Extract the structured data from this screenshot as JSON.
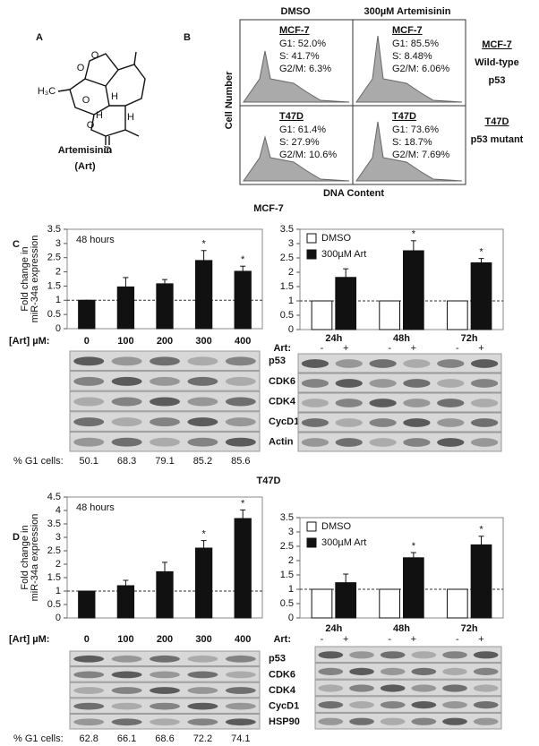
{
  "panel_labels": [
    "A",
    "B",
    "C",
    "D"
  ],
  "structure": {
    "name": "Artemisinin",
    "abbrev": "(Art)",
    "atoms": [
      "H₃C",
      "O",
      "O",
      "O",
      "H",
      "H",
      "O",
      "O",
      "H"
    ]
  },
  "flow": {
    "columns": [
      "DMSO",
      "300µM Artemisinin"
    ],
    "y_label": "Cell Number",
    "x_label": "DNA Content",
    "panels": [
      {
        "line": "MCF-7",
        "stats": [
          "G1: 52.0%",
          "S: 41.7%",
          "G2/M: 6.3%"
        ]
      },
      {
        "line": "MCF-7",
        "stats": [
          "G1: 85.5%",
          "S: 8.48%",
          "G2/M: 6.06%"
        ]
      },
      {
        "line": "T47D",
        "stats": [
          "G1: 61.4%",
          "S: 27.9%",
          "G2/M: 10.6%"
        ]
      },
      {
        "line": "T47D",
        "stats": [
          "G1: 73.6%",
          "S: 18.7%",
          "G2/M: 7.69%"
        ]
      }
    ],
    "rows": [
      {
        "name": "MCF-7",
        "desc": [
          "Wild-type",
          "p53"
        ]
      },
      {
        "name": "T47D",
        "desc": [
          "p53 mutant"
        ]
      }
    ]
  },
  "sections": [
    "MCF-7",
    "T47D"
  ],
  "blots": [
    {
      "proteins": [
        "p53",
        "CDK6",
        "CDK4",
        "CycD1",
        "Actin"
      ],
      "g1_label": "% G1 cells:",
      "g1_cells": [
        50.1,
        68.3,
        79.1,
        85.2,
        85.6
      ]
    },
    {
      "proteins": [
        "p53",
        "CDK6",
        "CDK4",
        "CycD1",
        "HSP90"
      ],
      "g1_label": "% G1 cells:",
      "g1_cells": [
        62.8,
        66.1,
        68.6,
        72.2,
        74.1
      ]
    }
  ],
  "chart_data": [
    {
      "type": "bar",
      "annotation": "48 hours",
      "y_label": [
        "Fold change in",
        "miR-34a expression"
      ],
      "x_label": "[Art] µM:",
      "categories": [
        "0",
        "100",
        "200",
        "300",
        "400"
      ],
      "values": [
        1,
        1.47,
        1.58,
        2.4,
        2.02
      ],
      "errors": [
        0,
        0.33,
        0.15,
        0.35,
        0.18
      ],
      "significance": [
        null,
        null,
        null,
        "*",
        "*"
      ],
      "color": "#111111",
      "reference_line": 1,
      "ylim": [
        0,
        3.5
      ],
      "yticks": [
        0,
        0.5,
        1,
        1.5,
        2,
        2.5,
        3,
        3.5
      ]
    },
    {
      "type": "grouped_bar",
      "categories": [
        "24h",
        "48h",
        "72h"
      ],
      "x_label": "Art:",
      "treatment_signs": [
        "-",
        "+"
      ],
      "legend": "top-left",
      "series": [
        {
          "name": "DMSO",
          "color": "#ffffff",
          "values": [
            1,
            1,
            1
          ]
        },
        {
          "name": "300µM Art",
          "color": "#111111",
          "values": [
            1.82,
            2.75,
            2.33
          ],
          "errors": [
            0.3,
            0.35,
            0.15
          ],
          "significance": [
            null,
            "*",
            "*"
          ]
        }
      ],
      "reference_line": 1,
      "ylim": [
        0,
        3.5
      ],
      "yticks": [
        0,
        0.5,
        1,
        1.5,
        2,
        2.5,
        3,
        3.5
      ]
    },
    {
      "type": "bar",
      "annotation": "48 hours",
      "y_label": [
        "Fold change in",
        "miR-34a expression"
      ],
      "x_label": "[Art] µM:",
      "categories": [
        "0",
        "100",
        "200",
        "300",
        "400"
      ],
      "values": [
        1,
        1.2,
        1.72,
        2.6,
        3.7
      ],
      "errors": [
        0,
        0.2,
        0.35,
        0.28,
        0.32
      ],
      "significance": [
        null,
        null,
        null,
        "*",
        "*"
      ],
      "color": "#111111",
      "reference_line": 1,
      "ylim": [
        0,
        4.5
      ],
      "yticks": [
        0,
        0.5,
        1,
        1.5,
        2,
        2.5,
        3,
        3.5,
        4,
        4.5
      ]
    },
    {
      "type": "grouped_bar",
      "categories": [
        "24h",
        "48h",
        "72h"
      ],
      "x_label": "Art:",
      "treatment_signs": [
        "-",
        "+"
      ],
      "legend": "top-left",
      "series": [
        {
          "name": "DMSO",
          "color": "#ffffff",
          "values": [
            1,
            1,
            1
          ]
        },
        {
          "name": "300µM Art",
          "color": "#111111",
          "values": [
            1.23,
            2.1,
            2.55
          ],
          "errors": [
            0.3,
            0.18,
            0.3
          ],
          "significance": [
            null,
            "*",
            "*"
          ]
        }
      ],
      "reference_line": 1,
      "ylim": [
        0,
        3.5
      ],
      "yticks": [
        0,
        0.5,
        1,
        1.5,
        2,
        2.5,
        3,
        3.5
      ]
    }
  ]
}
